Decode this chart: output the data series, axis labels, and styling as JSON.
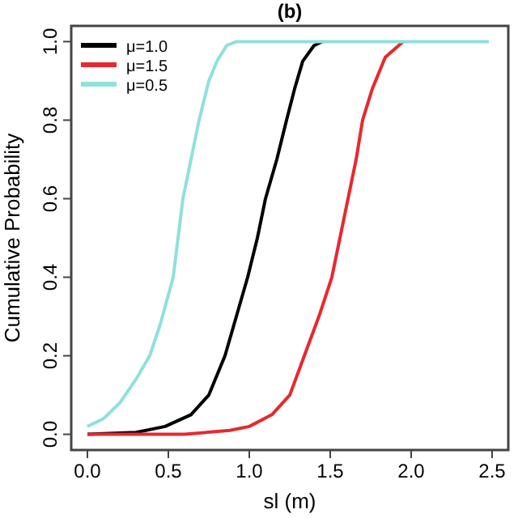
{
  "chart_data": {
    "type": "line",
    "title": "(b)",
    "xlabel": "sl (m)",
    "ylabel": "Cumulative Probability",
    "xlim": [
      -0.1,
      2.6
    ],
    "ylim": [
      -0.04,
      1.04
    ],
    "xticks": [
      {
        "value": 0,
        "label": "0.0"
      },
      0.5,
      {
        "value": 1,
        "label": "1.0"
      },
      1.5,
      {
        "value": 2,
        "label": "2.0"
      },
      2.5
    ],
    "yticks": [
      {
        "value": 0,
        "label": "0.0"
      },
      0.2,
      0.4,
      0.6,
      0.8,
      {
        "value": 1,
        "label": "1.0"
      }
    ],
    "grid": false,
    "legend": "top left",
    "marker": "none",
    "line_style": "solid",
    "series": [
      {
        "name": "μ=1.0",
        "color": "#000000",
        "x": [
          0,
          0.3,
          0.48,
          0.64,
          0.75,
          0.85,
          0.92,
          0.99,
          1.05,
          1.1,
          1.17,
          1.23,
          1.28,
          1.33,
          1.4,
          1.45
        ],
        "values": [
          0,
          0.005,
          0.02,
          0.05,
          0.1,
          0.2,
          0.3,
          0.4,
          0.5,
          0.6,
          0.7,
          0.8,
          0.88,
          0.95,
          0.99,
          1
        ]
      },
      {
        "name": "μ=1.5",
        "color": "#e8282e",
        "x": [
          0,
          0.6,
          0.88,
          1.0,
          1.14,
          1.25,
          1.34,
          1.43,
          1.51,
          1.56,
          1.61,
          1.66,
          1.7,
          1.76,
          1.84,
          1.95
        ],
        "values": [
          0,
          0,
          0.01,
          0.02,
          0.05,
          0.1,
          0.2,
          0.3,
          0.4,
          0.5,
          0.6,
          0.7,
          0.8,
          0.88,
          0.96,
          1
        ]
      },
      {
        "name": "μ=0.5",
        "color": "#8fe0dc",
        "x": [
          0,
          0.1,
          0.2,
          0.3,
          0.385,
          0.45,
          0.53,
          0.59,
          0.64,
          0.69,
          0.75,
          0.8,
          0.86,
          0.92,
          1.5,
          2.0,
          2.48
        ],
        "values": [
          0.02,
          0.04,
          0.08,
          0.14,
          0.2,
          0.28,
          0.4,
          0.6,
          0.7,
          0.8,
          0.9,
          0.95,
          0.99,
          1,
          1,
          1,
          1
        ]
      }
    ]
  }
}
